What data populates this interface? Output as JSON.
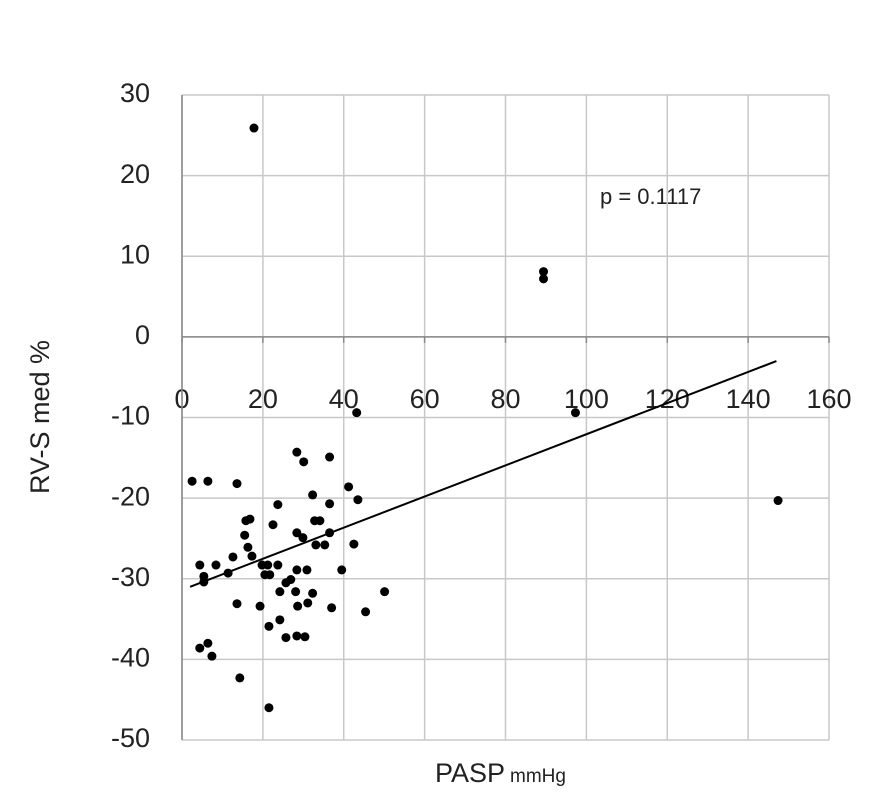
{
  "chart_data": {
    "type": "scatter",
    "y_label": "RV-S med %",
    "x_label": "PASP",
    "x_label_unit": "mmHg",
    "annotation": "p = 0.1117",
    "color": "#000000",
    "grid": true,
    "xlim": [
      0,
      160
    ],
    "ylim": [
      -50,
      30
    ],
    "xticks": [
      0,
      20,
      40,
      60,
      80,
      100,
      120,
      140,
      160
    ],
    "yticks": [
      30,
      20,
      10,
      0,
      -10,
      -20,
      -30,
      -40,
      -50
    ],
    "x": [
      17.8,
      89.4,
      89.4,
      97.3,
      43.2,
      147.4,
      2.5,
      6.4,
      13.6,
      28.4,
      30.1,
      36.5,
      41.2,
      43.5,
      32.3,
      23.7,
      15.8,
      16.8,
      22.5,
      32.8,
      34.1,
      36.5,
      36.5,
      28.4,
      29.9,
      15.5,
      33.1,
      35.3,
      42.5,
      16.3,
      17.3,
      12.6,
      21.2,
      23.7,
      19.8,
      4.4,
      8.4,
      26.9,
      28.4,
      30.9,
      39.5,
      5.4,
      5.4,
      11.4,
      20.5,
      21.7,
      25.7,
      24.2,
      28.1,
      32.3,
      50.1,
      13.6,
      19.3,
      31.1,
      28.6,
      37.0,
      45.4,
      21.5,
      24.2,
      25.7,
      28.4,
      30.4,
      6.4,
      4.4,
      7.4,
      14.3,
      21.5
    ],
    "values": [
      25.9,
      8.1,
      7.2,
      -9.4,
      -9.4,
      -20.3,
      -17.9,
      -17.9,
      -18.2,
      -14.3,
      -15.5,
      -14.9,
      -18.6,
      -20.2,
      -19.6,
      -20.8,
      -22.8,
      -22.6,
      -23.3,
      -22.8,
      -22.8,
      -20.7,
      -24.3,
      -24.3,
      -24.9,
      -24.6,
      -25.8,
      -25.8,
      -25.7,
      -26.1,
      -27.2,
      -27.3,
      -28.3,
      -28.3,
      -28.3,
      -28.3,
      -28.3,
      -30.1,
      -28.9,
      -28.9,
      -28.9,
      -29.7,
      -30.4,
      -29.3,
      -29.5,
      -29.5,
      -30.5,
      -31.6,
      -31.6,
      -31.8,
      -31.6,
      -33.1,
      -33.4,
      -33.0,
      -33.4,
      -33.6,
      -34.1,
      -35.9,
      -35.1,
      -37.3,
      -37.1,
      -37.2,
      -38.0,
      -38.6,
      -39.6,
      -42.3,
      -46.0
    ],
    "trendline": {
      "x": [
        2,
        147
      ],
      "y": [
        -31,
        -3
      ]
    }
  }
}
